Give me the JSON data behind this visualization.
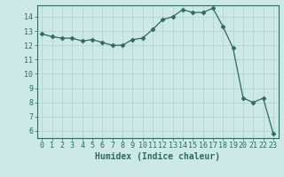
{
  "x": [
    0,
    1,
    2,
    3,
    4,
    5,
    6,
    7,
    8,
    9,
    10,
    11,
    12,
    13,
    14,
    15,
    16,
    17,
    18,
    19,
    20,
    21,
    22,
    23
  ],
  "y": [
    12.8,
    12.6,
    12.5,
    12.5,
    12.3,
    12.4,
    12.2,
    12.0,
    12.0,
    12.4,
    12.5,
    13.1,
    13.8,
    14.0,
    14.5,
    14.3,
    14.3,
    14.6,
    13.3,
    11.8,
    8.3,
    8.0,
    8.3,
    5.8
  ],
  "line_color": "#2e6b5e",
  "marker": "D",
  "marker_size": 2.5,
  "bg_color": "#cce9e7",
  "grid_color": "#b0cece",
  "xlabel": "Humidex (Indice chaleur)",
  "xlim": [
    -0.5,
    23.5
  ],
  "ylim": [
    5.5,
    14.8
  ],
  "yticks": [
    6,
    7,
    8,
    9,
    10,
    11,
    12,
    13,
    14
  ],
  "xticks": [
    0,
    1,
    2,
    3,
    4,
    5,
    6,
    7,
    8,
    9,
    10,
    11,
    12,
    13,
    14,
    15,
    16,
    17,
    18,
    19,
    20,
    21,
    22,
    23
  ],
  "label_fontsize": 7,
  "tick_fontsize": 6
}
